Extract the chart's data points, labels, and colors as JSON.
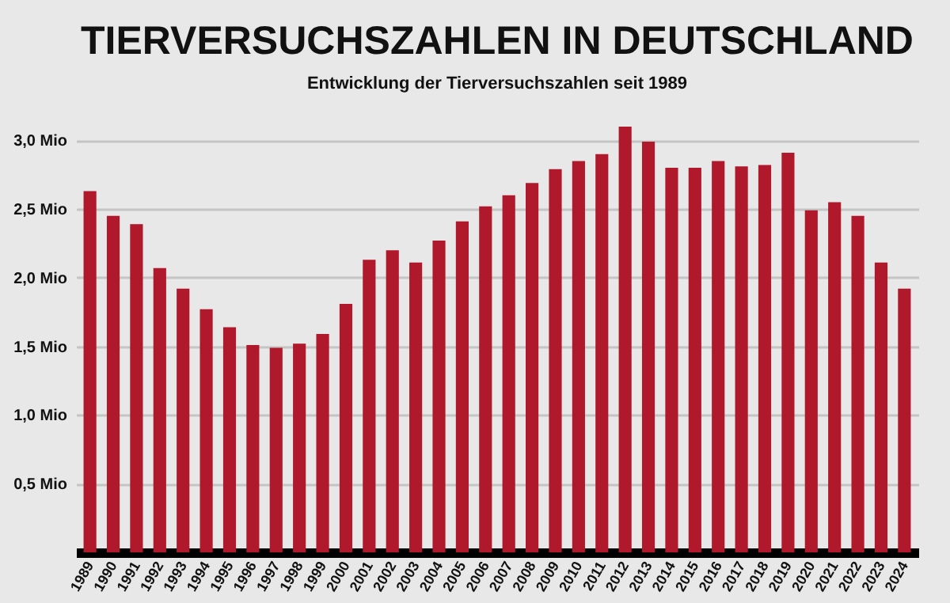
{
  "chart_data": {
    "type": "bar",
    "title": "TIERVERSUCHSZAHLEN IN DEUTSCHLAND",
    "subtitle": "Entwicklung der Tierversuchszahlen seit 1989",
    "categories": [
      "1989",
      "1990",
      "1991",
      "1992",
      "1993",
      "1994",
      "1995",
      "1996",
      "1997",
      "1998",
      "1999",
      "2000",
      "2001",
      "2002",
      "2003",
      "2004",
      "2005",
      "2006",
      "2007",
      "2008",
      "2009",
      "2010",
      "2011",
      "2012",
      "2013",
      "2014",
      "2015",
      "2016",
      "2017",
      "2018",
      "2019",
      "2020",
      "2021",
      "2022",
      "2023",
      "2024"
    ],
    "values": [
      2.63,
      2.45,
      2.39,
      2.07,
      1.92,
      1.77,
      1.64,
      1.51,
      1.49,
      1.52,
      1.59,
      1.81,
      2.13,
      2.2,
      2.11,
      2.27,
      2.41,
      2.52,
      2.6,
      2.69,
      2.79,
      2.85,
      2.9,
      3.1,
      2.99,
      2.8,
      2.8,
      2.85,
      2.81,
      2.82,
      2.91,
      2.49,
      2.55,
      2.45,
      2.11,
      1.92
    ],
    "color": "#b0182b",
    "ylim": [
      0,
      3.1
    ],
    "yticks": [
      {
        "value": 0.5,
        "label": "0,5 Mio"
      },
      {
        "value": 1,
        "label": "1,0 Mio"
      },
      {
        "value": 1.5,
        "label": "1,5 Mio"
      },
      {
        "value": 2,
        "label": "2,0 Mio"
      },
      {
        "value": 2.5,
        "label": "2,5 Mio"
      },
      {
        "value": 3,
        "label": "3,0 Mio"
      }
    ],
    "grid": "y"
  }
}
